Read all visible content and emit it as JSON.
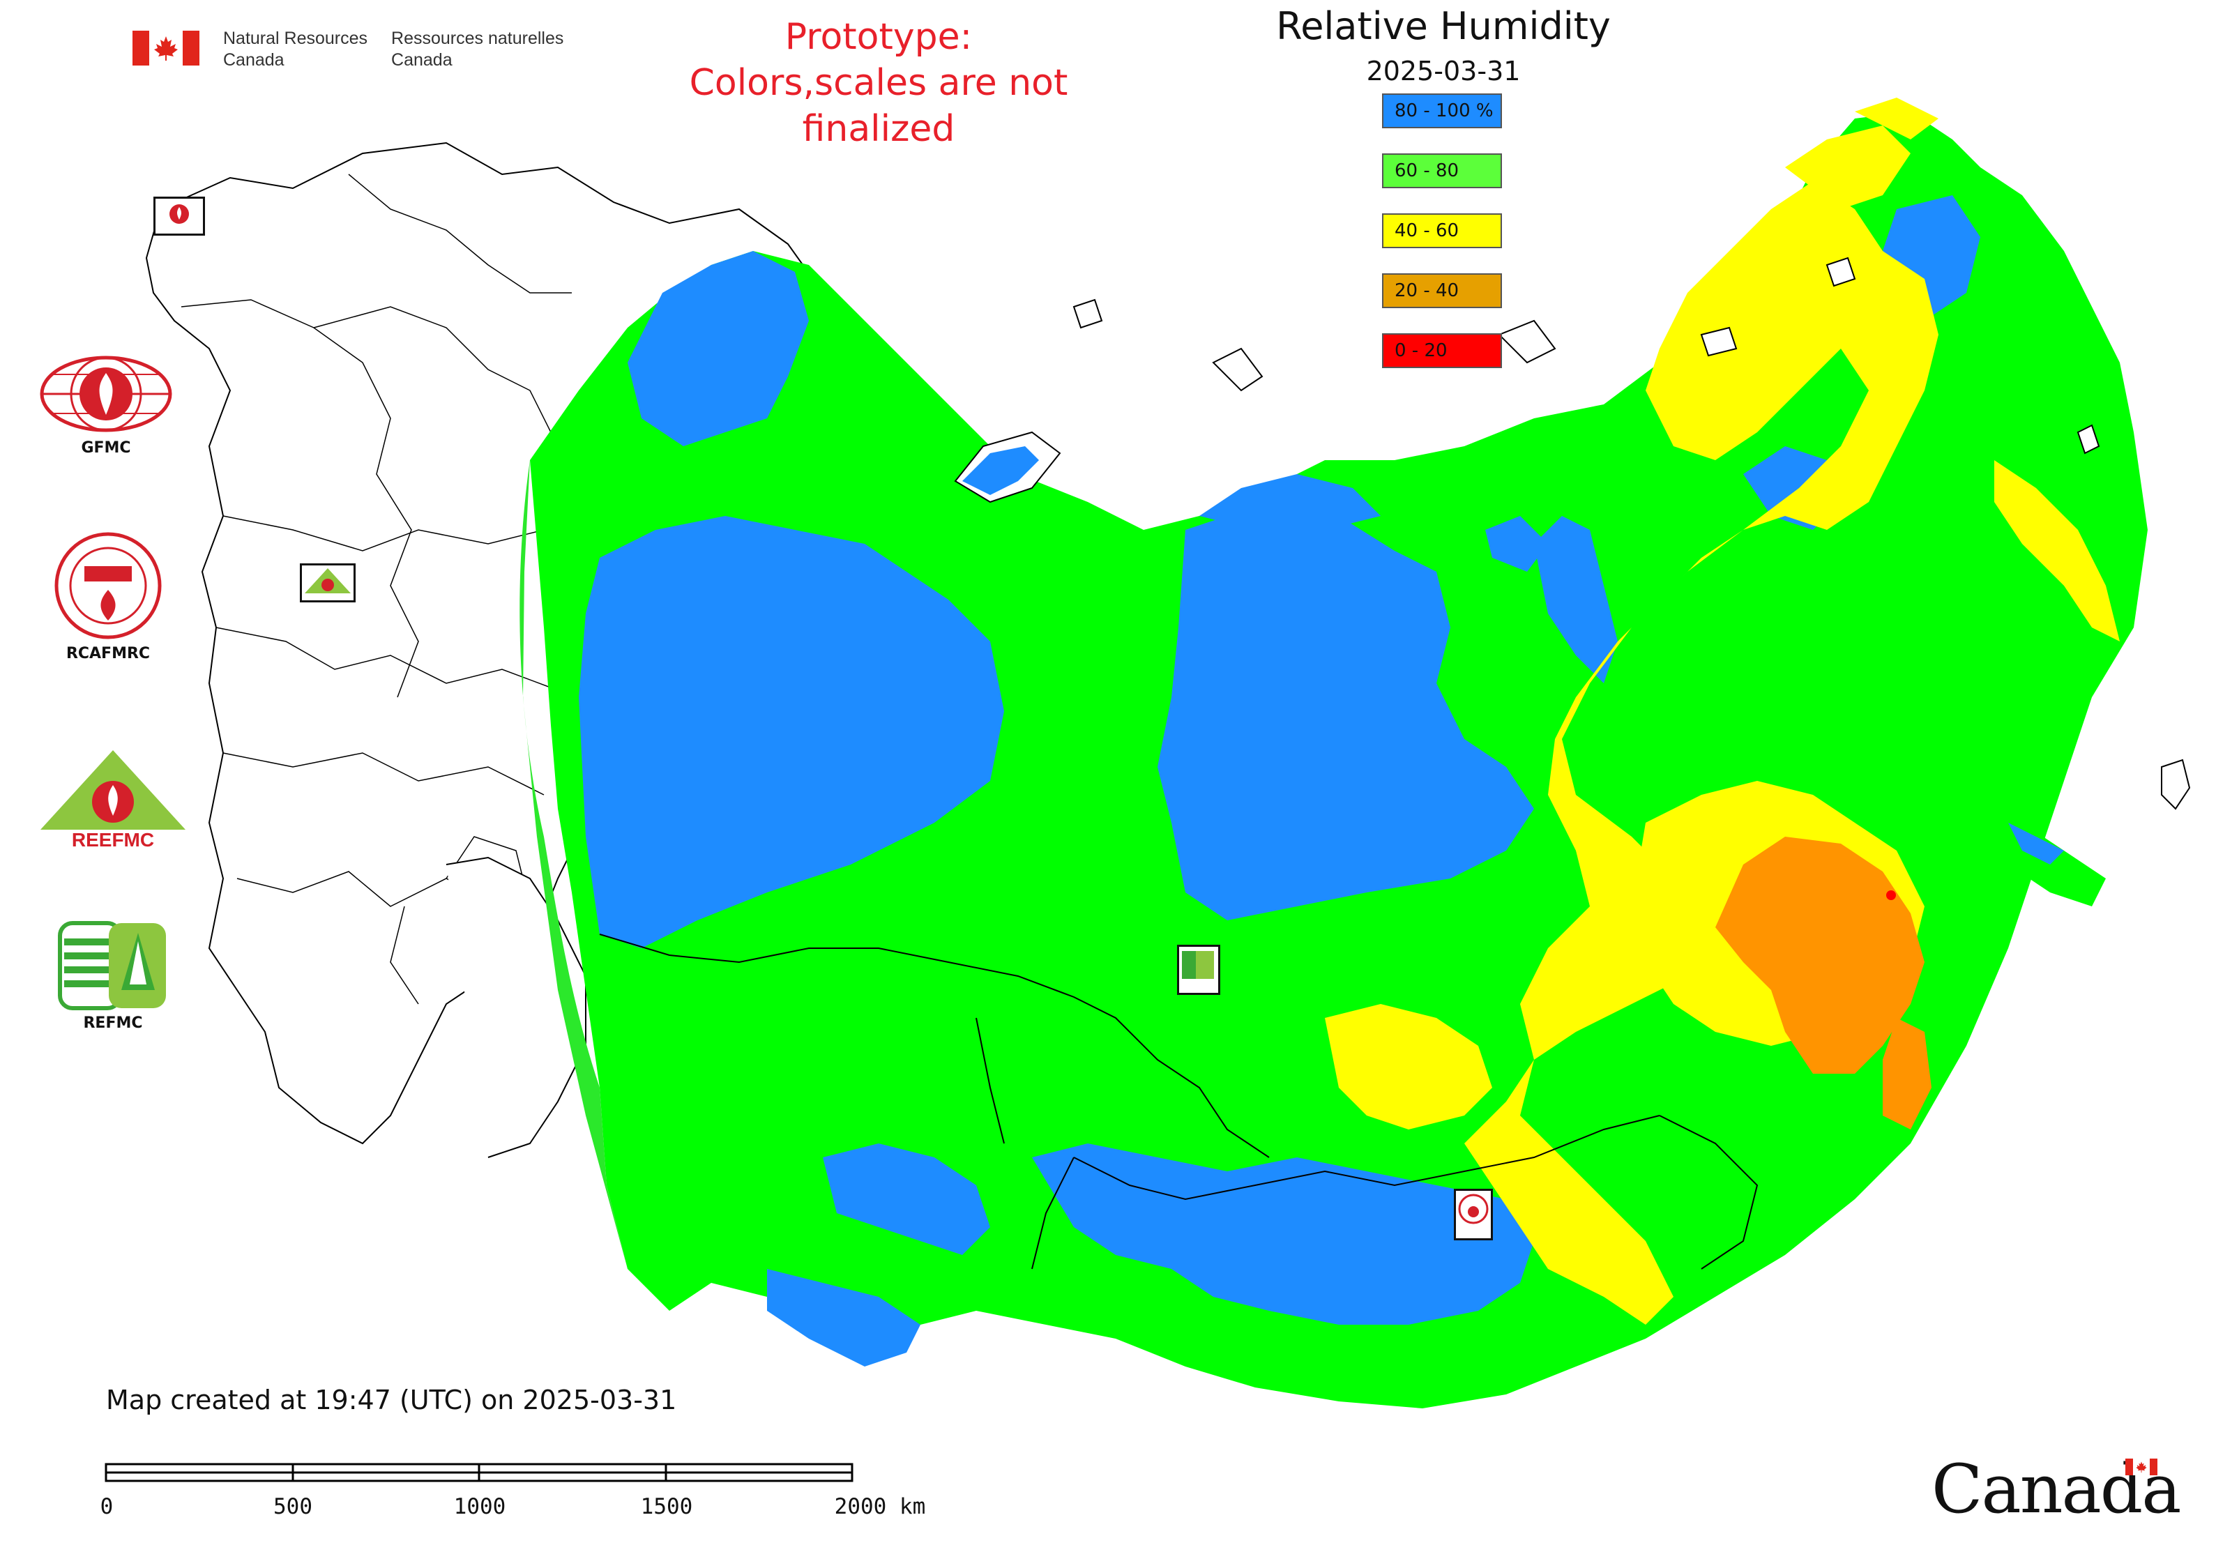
{
  "header": {
    "department_en": "Natural Resources\nCanada",
    "department_fr": "Ressources naturelles\nCanada",
    "prototype_notice_line1": "Prototype:",
    "prototype_notice_line2": "Colors,scales are not finalized"
  },
  "legend": {
    "title": "Relative Humidity",
    "date": "2025-03-31",
    "classes": [
      {
        "label": "80 - 100 %",
        "color": "#1e8cff"
      },
      {
        "label": "60 - 80",
        "color": "#5cff3a"
      },
      {
        "label": "40 - 60",
        "color": "#ffff00"
      },
      {
        "label": "20 - 40",
        "color": "#e6a000"
      },
      {
        "label": "0 - 20",
        "color": "#ff0000"
      }
    ]
  },
  "map_colors": {
    "blue": "#1e8cff",
    "green": "#00ff00",
    "yellow": "#ffff00",
    "orange": "#ff9400",
    "red": "#ff0000",
    "boundary": "#000000"
  },
  "logos": [
    {
      "caption": "GFMC",
      "icon": "gfmc-logo"
    },
    {
      "caption": "RCAFMRC",
      "icon": "rcafmrc-logo"
    },
    {
      "caption": "",
      "icon": "reefmc-logo",
      "wordmark": "REEFMC"
    },
    {
      "caption": "REFMC",
      "icon": "refmc-logo"
    }
  ],
  "map_markers": [
    {
      "label": "GFMC",
      "icon": "gfmc-marker"
    },
    {
      "label": "REEFMC",
      "icon": "reefmc-marker"
    },
    {
      "label": "REFMC",
      "icon": "refmc-marker"
    },
    {
      "label": "RCAFMRC",
      "icon": "rcafmrc-marker"
    }
  ],
  "footer": {
    "created_text": "Map created at 19:47 (UTC) on 2025-03-31",
    "scale_ticks": [
      "0",
      "500",
      "1000",
      "1500",
      "2000 km"
    ],
    "wordmark": "Canada"
  }
}
